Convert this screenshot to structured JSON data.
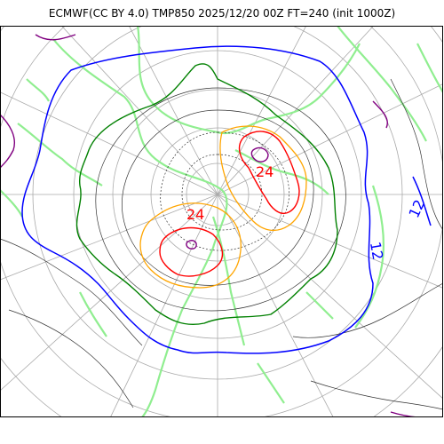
{
  "title": "ECMWF(CC BY 4.0) TMP850 2025/12/20 00Z FT=240 (init 1000Z)",
  "colors": {
    "frame": "#000000",
    "grid": "#aaaaaa",
    "coast": "#90ee90",
    "isotherm_black": "#333333",
    "isotherm_12": "#0000ff",
    "isotherm_3": "#008000",
    "isotherm_orange": "#ffa500",
    "isotherm_24": "#ff0000",
    "isotherm_purple": "#800080"
  },
  "contour_labels": [
    {
      "text": "24",
      "color": "#ff0000"
    },
    {
      "text": "24",
      "color": "#ff0000"
    },
    {
      "text": "12",
      "color": "#0000ff"
    },
    {
      "text": "12",
      "color": "#0000ff"
    }
  ]
}
